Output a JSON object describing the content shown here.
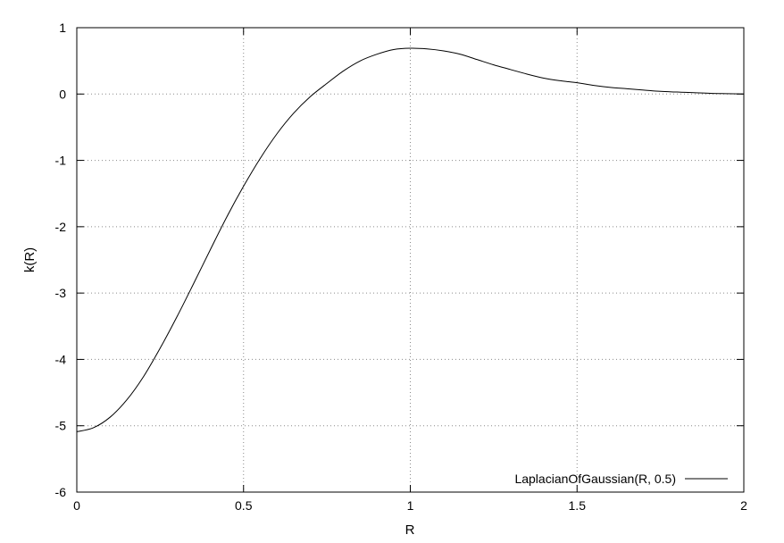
{
  "chart_data": {
    "type": "line",
    "xlabel": "R",
    "ylabel": "k(R)",
    "xlim": [
      0,
      2
    ],
    "ylim": [
      -6,
      1
    ],
    "xticks": [
      0,
      0.5,
      1,
      1.5,
      2
    ],
    "xtick_labels": [
      "0",
      "0.5",
      "1",
      "1.5",
      "2"
    ],
    "yticks": [
      -6,
      -5,
      -4,
      -3,
      -2,
      -1,
      0,
      1
    ],
    "ytick_labels": [
      "-6",
      "-5",
      "-4",
      "-3",
      "-2",
      "-1",
      "0",
      "1"
    ],
    "grid": true,
    "legend_position": "bottom-right",
    "series": [
      {
        "name": "LaplacianOfGaussian(R, 0.5)",
        "color": "#000000",
        "x": [
          0,
          0.05,
          0.1,
          0.15,
          0.2,
          0.25,
          0.3,
          0.35,
          0.4,
          0.45,
          0.5,
          0.55,
          0.6,
          0.65,
          0.7,
          0.75,
          0.8,
          0.85,
          0.9,
          0.95,
          1.0,
          1.05,
          1.1,
          1.15,
          1.2,
          1.25,
          1.3,
          1.35,
          1.4,
          1.45,
          1.5,
          1.55,
          1.6,
          1.65,
          1.7,
          1.75,
          1.8,
          1.85,
          1.9,
          1.95,
          2.0
        ],
        "y": [
          -5.09,
          -5.03,
          -4.87,
          -4.61,
          -4.26,
          -3.83,
          -3.36,
          -2.86,
          -2.35,
          -1.85,
          -1.39,
          -0.97,
          -0.6,
          -0.29,
          -0.04,
          0.16,
          0.35,
          0.5,
          0.6,
          0.67,
          0.69,
          0.68,
          0.65,
          0.6,
          0.52,
          0.44,
          0.37,
          0.3,
          0.24,
          0.2,
          0.17,
          0.13,
          0.1,
          0.08,
          0.06,
          0.04,
          0.03,
          0.02,
          0.01,
          0.005,
          0.0
        ]
      }
    ]
  }
}
